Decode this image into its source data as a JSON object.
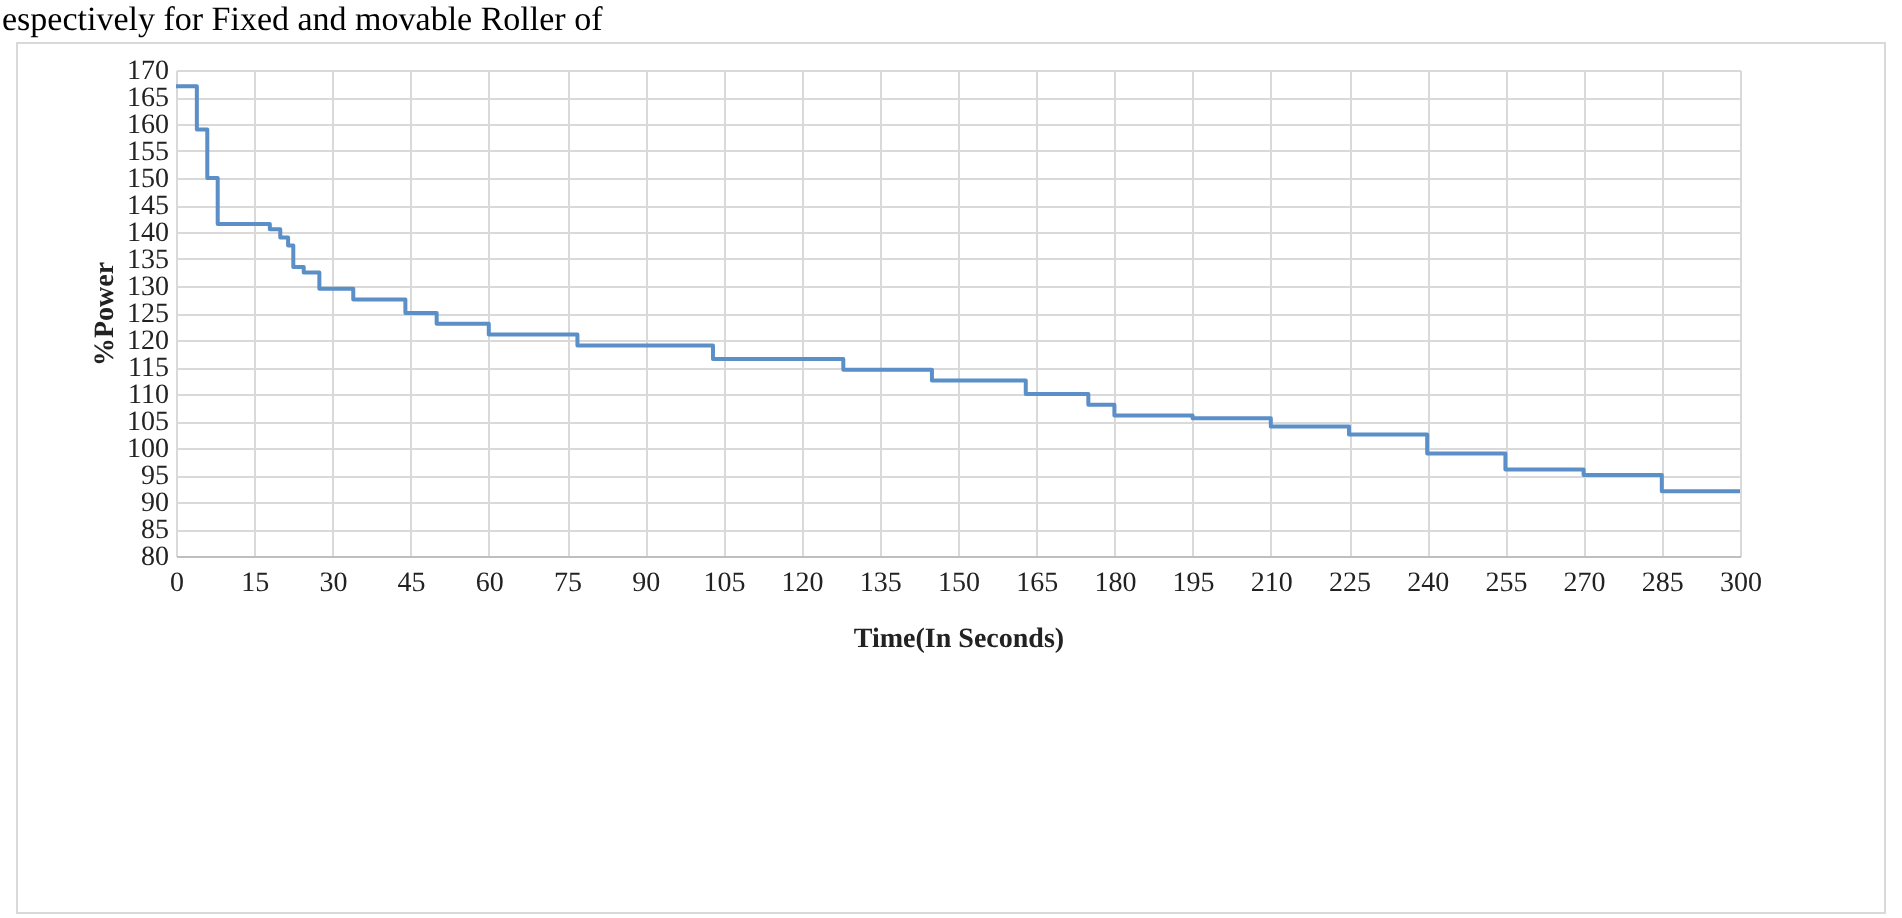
{
  "chart_data": {
    "type": "step",
    "xlabel": "Time(In Seconds)",
    "ylabel": "%Power",
    "annotations": [
      "espectively for Fixed and movable Roller of"
    ],
    "series": [
      {
        "color": "#5b8fc7",
        "x": [
          0,
          4,
          6,
          8,
          18,
          20,
          21.5,
          22.5,
          24.5,
          27.5,
          34,
          44,
          50,
          60,
          77,
          103,
          128,
          145,
          163,
          175,
          180,
          195,
          210,
          225,
          240,
          255,
          270,
          285,
          300
        ],
        "values": [
          167,
          159,
          150,
          141.5,
          140.5,
          139,
          137.5,
          133.5,
          132.5,
          129.5,
          127.5,
          125,
          123,
          121,
          119,
          116.5,
          114.5,
          112.5,
          110,
          108,
          106,
          105.5,
          104,
          102.5,
          99,
          96,
          95,
          92,
          92
        ]
      }
    ],
    "xlim": [
      0,
      300
    ],
    "xticks": [
      0,
      15,
      30,
      45,
      60,
      75,
      90,
      105,
      120,
      135,
      150,
      165,
      180,
      195,
      210,
      225,
      240,
      255,
      270,
      285,
      300
    ],
    "ylim": [
      80,
      170
    ],
    "yticks": [
      80,
      85,
      90,
      95,
      100,
      105,
      110,
      115,
      120,
      125,
      130,
      135,
      140,
      145,
      150,
      155,
      160,
      165,
      170
    ],
    "grid": true,
    "line_style": "solid"
  }
}
